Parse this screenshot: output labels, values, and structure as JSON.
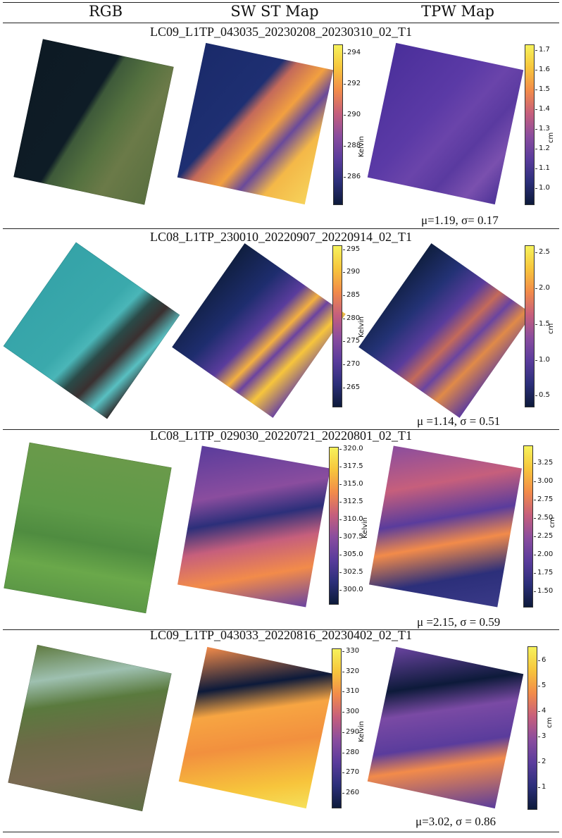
{
  "columns": [
    "RGB",
    "SW ST Map",
    "TPW Map"
  ],
  "colormaps": {
    "plasma_like": [
      "#0d1a3a",
      "#2c2f7a",
      "#5a3c9c",
      "#8a4d9e",
      "#c65f7c",
      "#f28b4a",
      "#f7c53c",
      "#f6f25b"
    ]
  },
  "rows": [
    {
      "title": "LC09_L1TP_043035_20230208_20230310_02_T1",
      "st_unit": "Kelvin",
      "st_ticks": [
        "294",
        "292",
        "290",
        "288",
        "286"
      ],
      "tpw_unit": "cm",
      "tpw_ticks": [
        "1.7",
        "1.6",
        "1.5",
        "1.4",
        "1.3",
        "1.2",
        "1.1",
        "1.0"
      ],
      "mu": "1.19",
      "sigma": "0.17",
      "stat_text": "μ=1.19, σ= 0.17"
    },
    {
      "title": "LC08_L1TP_230010_20220907_20220914_02_T1",
      "st_unit": "Kelvin",
      "st_ticks": [
        "295",
        "290",
        "285",
        "280",
        "275",
        "270",
        "265"
      ],
      "tpw_unit": "cm",
      "tpw_ticks": [
        "2.5",
        "2.0",
        "1.5",
        "1.0",
        "0.5"
      ],
      "mu": "1.14",
      "sigma": "0.51",
      "stat_text": "μ =1.14, σ = 0.51"
    },
    {
      "title": "LC08_L1TP_029030_20220721_20220801_02_T1",
      "st_unit": "Kelvin",
      "st_ticks": [
        "320.0",
        "317.5",
        "315.0",
        "312.5",
        "310.0",
        "307.5",
        "305.0",
        "302.5",
        "300.0"
      ],
      "tpw_unit": "cm",
      "tpw_ticks": [
        "3.25",
        "3.00",
        "2.75",
        "2.50",
        "2.25",
        "2.00",
        "1.75",
        "1.50"
      ],
      "mu": "2.15",
      "sigma": "0.59",
      "stat_text": "μ =2.15, σ = 0.59"
    },
    {
      "title": "LC09_L1TP_043033_20220816_20230402_02_T1",
      "st_unit": "Kelvin",
      "st_ticks": [
        "330",
        "320",
        "310",
        "300",
        "290",
        "280",
        "270",
        "260"
      ],
      "tpw_unit": "cm",
      "tpw_ticks": [
        "6",
        "5",
        "4",
        "3",
        "2",
        "1"
      ],
      "mu": "3.02",
      "sigma": "0.86",
      "stat_text": "μ=3.02, σ = 0.86"
    }
  ]
}
